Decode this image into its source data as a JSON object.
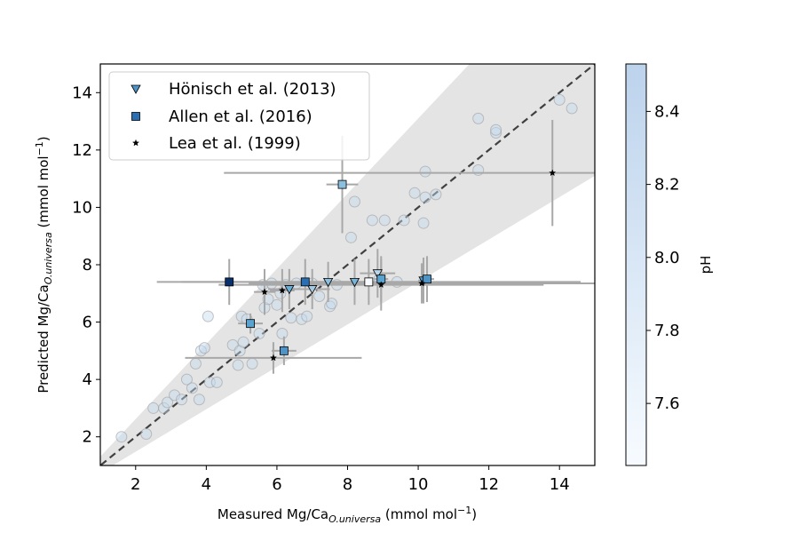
{
  "chart_data": {
    "type": "scatter",
    "xlabel": {
      "main": "Measured Mg/Ca",
      "sub": "O.universa",
      "unit": " (mmol mol",
      "sup": "−1",
      "close": ")"
    },
    "ylabel": {
      "main": "Predicted Mg/Ca",
      "sub": "O.universa",
      "unit": " (mmol mol",
      "sup": "−1",
      "close": ")"
    },
    "xlim": [
      1,
      15
    ],
    "ylim": [
      1,
      15
    ],
    "x_ticks": [
      2,
      4,
      6,
      8,
      10,
      12,
      14
    ],
    "y_ticks": [
      2,
      4,
      6,
      8,
      10,
      12,
      14
    ],
    "grid": false,
    "legend_position": "upper-left",
    "reference_line": {
      "style": "dashed",
      "slope": 1,
      "intercept": 0,
      "color": "#404040"
    },
    "uncertainty_band": {
      "upper_slope": 1.31,
      "lower_slope": 0.74,
      "color": "#e4e4e4"
    },
    "colorbar": {
      "label": "pH",
      "range": [
        7.43,
        8.53
      ],
      "ticks": [
        7.6,
        7.8,
        8.0,
        8.2,
        8.4
      ],
      "colormap": "Blues",
      "low_color": "#f7fbff",
      "high_color": "#bcd3ec"
    },
    "background_points": {
      "name": "",
      "marker": "circle",
      "points": [
        [
          1.6,
          2.0
        ],
        [
          2.3,
          2.1
        ],
        [
          2.5,
          3.0
        ],
        [
          2.8,
          3.0
        ],
        [
          2.9,
          3.2
        ],
        [
          3.1,
          3.45
        ],
        [
          3.3,
          3.3
        ],
        [
          3.45,
          4.0
        ],
        [
          3.6,
          3.7
        ],
        [
          3.7,
          4.55
        ],
        [
          3.8,
          3.3
        ],
        [
          3.85,
          5.0
        ],
        [
          3.95,
          5.1
        ],
        [
          4.05,
          6.2
        ],
        [
          4.1,
          3.9
        ],
        [
          4.3,
          3.9
        ],
        [
          4.75,
          5.2
        ],
        [
          4.9,
          4.5
        ],
        [
          4.95,
          5.0
        ],
        [
          5.0,
          6.2
        ],
        [
          5.05,
          5.3
        ],
        [
          5.15,
          6.1
        ],
        [
          5.3,
          4.55
        ],
        [
          5.5,
          5.6
        ],
        [
          5.6,
          7.3
        ],
        [
          5.65,
          6.5
        ],
        [
          5.75,
          6.8
        ],
        [
          5.85,
          7.35
        ],
        [
          6.0,
          6.6
        ],
        [
          6.1,
          7.0
        ],
        [
          6.15,
          5.6
        ],
        [
          6.25,
          7.3
        ],
        [
          6.4,
          6.15
        ],
        [
          6.55,
          7.35
        ],
        [
          6.7,
          6.1
        ],
        [
          6.85,
          6.2
        ],
        [
          7.0,
          7.35
        ],
        [
          7.2,
          6.9
        ],
        [
          7.5,
          6.55
        ],
        [
          7.55,
          6.65
        ],
        [
          7.7,
          7.3
        ],
        [
          8.1,
          8.95
        ],
        [
          8.2,
          10.2
        ],
        [
          8.7,
          9.55
        ],
        [
          8.9,
          7.5
        ],
        [
          9.05,
          9.55
        ],
        [
          9.4,
          7.4
        ],
        [
          9.6,
          9.55
        ],
        [
          9.9,
          10.5
        ],
        [
          10.15,
          9.45
        ],
        [
          10.2,
          10.35
        ],
        [
          10.2,
          11.25
        ],
        [
          10.5,
          10.45
        ],
        [
          11.7,
          13.1
        ],
        [
          11.7,
          11.3
        ],
        [
          12.2,
          12.6
        ],
        [
          12.2,
          12.7
        ],
        [
          14.0,
          13.75
        ],
        [
          14.35,
          13.45
        ]
      ]
    },
    "series": [
      {
        "name": "Hönisch et al. (2013)",
        "marker": "triangle-down",
        "color": "#4e94c6",
        "points": [
          {
            "x": 6.35,
            "y": 7.15,
            "xerr": 0.6,
            "yerr": 0.7,
            "color": "#6badd5"
          },
          {
            "x": 7.0,
            "y": 7.15,
            "xerr": 0.5,
            "yerr": 0.7,
            "color": "#a3c9e3"
          },
          {
            "x": 7.45,
            "y": 7.4,
            "xerr": 0.4,
            "yerr": 0.7,
            "color": "#8cbfdd"
          },
          {
            "x": 8.2,
            "y": 7.4,
            "xerr": 0.4,
            "yerr": 0.8,
            "color": "#7ab5d9"
          },
          {
            "x": 8.85,
            "y": 7.7,
            "xerr": 0.5,
            "yerr": 0.85,
            "color": "#bad6eb"
          },
          {
            "x": 10.15,
            "y": 7.45,
            "xerr": 0.15,
            "yerr": 0.8,
            "color": "#4e94c6"
          }
        ]
      },
      {
        "name": "Allen et al. (2016)",
        "marker": "square",
        "color": "#2a6fb4",
        "points": [
          {
            "x": 4.65,
            "y": 7.4,
            "xerr": 0.2,
            "yerr": 0.8,
            "color": "#08306b"
          },
          {
            "x": 5.25,
            "y": 5.95,
            "xerr": 0.35,
            "yerr": 0.35,
            "color": "#5aa2d0"
          },
          {
            "x": 6.2,
            "y": 5.0,
            "xerr": 0.35,
            "yerr": 0.5,
            "color": "#4e94c6"
          },
          {
            "x": 6.8,
            "y": 7.4,
            "xerr": 3.5,
            "yerr": 0.8,
            "color": "#2a6fb4"
          },
          {
            "x": 7.85,
            "y": 10.8,
            "xerr": 0.45,
            "yerr": 1.7,
            "color": "#8cbfdd"
          },
          {
            "x": 8.6,
            "y": 7.4,
            "xerr": 6.0,
            "yerr": 0.8,
            "color": "#f7fbff"
          },
          {
            "x": 8.95,
            "y": 7.5,
            "xerr": 0.2,
            "yerr": 0.8,
            "color": "#5aa2d0"
          },
          {
            "x": 10.25,
            "y": 7.5,
            "xerr": 0.2,
            "yerr": 0.8,
            "color": "#4e94c6"
          }
        ]
      },
      {
        "name": "Lea et al. (1999)",
        "marker": "star",
        "color": "#000000",
        "points": [
          {
            "x": 5.65,
            "y": 7.05,
            "xerr": 0.3,
            "yerr": 0.8,
            "color": "#000000"
          },
          {
            "x": 5.9,
            "y": 4.75,
            "xerr": 2.5,
            "yerr": 0.55,
            "color": "#000000"
          },
          {
            "x": 6.15,
            "y": 7.1,
            "xerr": 0.35,
            "yerr": 0.75,
            "color": "#000000"
          },
          {
            "x": 8.95,
            "y": 7.3,
            "xerr": 4.6,
            "yerr": 0.9,
            "color": "#000000"
          },
          {
            "x": 10.1,
            "y": 7.35,
            "xerr": 4.9,
            "yerr": 0.7,
            "color": "#000000"
          },
          {
            "x": 13.8,
            "y": 11.2,
            "xerr": 9.3,
            "yerr": 1.85,
            "color": "#000000"
          }
        ]
      }
    ]
  }
}
